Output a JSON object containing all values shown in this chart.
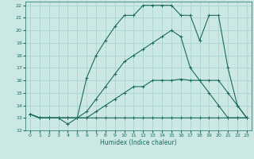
{
  "xlabel": "Humidex (Indice chaleur)",
  "xlim": [
    -0.5,
    23.5
  ],
  "ylim": [
    12,
    22.3
  ],
  "yticks": [
    12,
    13,
    14,
    15,
    16,
    17,
    18,
    19,
    20,
    21,
    22
  ],
  "xticks": [
    0,
    1,
    2,
    3,
    4,
    5,
    6,
    7,
    8,
    9,
    10,
    11,
    12,
    13,
    14,
    15,
    16,
    17,
    18,
    19,
    20,
    21,
    22,
    23
  ],
  "bg_color": "#cce8e5",
  "grid_color": "#aad4d0",
  "line_color": "#1a6b5a",
  "lines": [
    {
      "x": [
        0,
        1,
        2,
        3,
        4,
        5,
        6,
        7,
        8,
        9,
        10,
        11,
        12,
        13,
        14,
        15,
        16,
        17,
        18,
        19,
        20,
        21,
        22,
        23
      ],
      "y": [
        13.3,
        13,
        13,
        13,
        12.5,
        13,
        13,
        13,
        13,
        13,
        13,
        13,
        13,
        13,
        13,
        13,
        13,
        13,
        13,
        13,
        13,
        13,
        13,
        13
      ]
    },
    {
      "x": [
        0,
        1,
        2,
        3,
        4,
        5,
        6,
        7,
        8,
        9,
        10,
        11,
        12,
        13,
        14,
        15,
        16,
        17,
        18,
        19,
        20,
        21,
        22,
        23
      ],
      "y": [
        13.3,
        13,
        13,
        13,
        13,
        13,
        13,
        13.5,
        14,
        14.5,
        15,
        15.5,
        15.5,
        16,
        16,
        16,
        16.1,
        16,
        16,
        16,
        16,
        15,
        14,
        13
      ]
    },
    {
      "x": [
        0,
        1,
        2,
        3,
        4,
        5,
        6,
        7,
        8,
        9,
        10,
        11,
        12,
        13,
        14,
        15,
        16,
        17,
        18,
        19,
        20,
        21,
        22,
        23
      ],
      "y": [
        13.3,
        13,
        13,
        13,
        13,
        13,
        13.5,
        14.5,
        15.5,
        16.5,
        17.5,
        18,
        18.5,
        19,
        19.5,
        20,
        19.5,
        17,
        16,
        15,
        14,
        13,
        13,
        13
      ]
    },
    {
      "x": [
        0,
        1,
        2,
        3,
        4,
        5,
        6,
        7,
        8,
        9,
        10,
        11,
        12,
        13,
        14,
        15,
        16,
        17,
        18,
        19,
        20,
        21,
        22,
        23
      ],
      "y": [
        13.3,
        13,
        13,
        13,
        13,
        13,
        16.2,
        18,
        19.2,
        20.3,
        21.2,
        21.2,
        22,
        22,
        22,
        22,
        21.2,
        21.2,
        19.2,
        21.2,
        21.2,
        17,
        14,
        13
      ]
    }
  ]
}
